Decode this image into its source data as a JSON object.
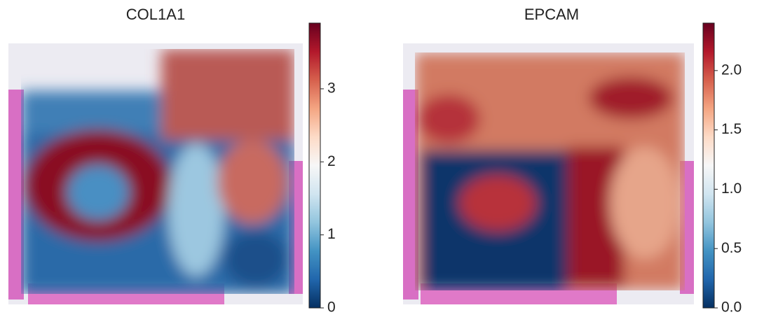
{
  "chart_data": [
    {
      "type": "colorbar",
      "title": "COL1A1",
      "ylim": [
        0,
        3.9
      ],
      "yticks": [
        0,
        1,
        2,
        3
      ],
      "colors": [
        "#053061",
        "#2166ac",
        "#4393c3",
        "#92c5de",
        "#d1e5f0",
        "#f7f7f7",
        "#fddbc7",
        "#f4a582",
        "#d6604d",
        "#b2182b",
        "#67001f"
      ]
    },
    {
      "type": "colorbar",
      "title": "EPCAM",
      "ylim": [
        0,
        2.4
      ],
      "yticks": [
        {
          "value": 0,
          "label": "0.0"
        },
        0.5,
        {
          "value": 1,
          "label": "1.0"
        },
        1.5,
        {
          "value": 2,
          "label": "2.0"
        }
      ],
      "colors": [
        "#053061",
        "#2166ac",
        "#4393c3",
        "#92c5de",
        "#d1e5f0",
        "#f7f7f7",
        "#fddbc7",
        "#f4a582",
        "#d6604d",
        "#b2182b",
        "#67001f"
      ]
    }
  ]
}
